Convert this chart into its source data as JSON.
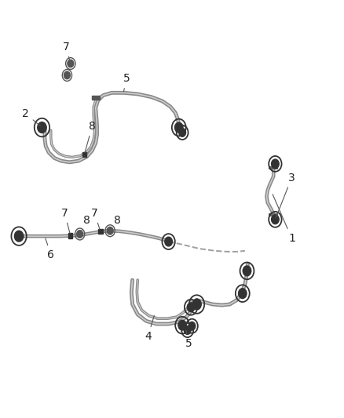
{
  "background_color": "#ffffff",
  "line_color": "#555555",
  "label_color": "#222222",
  "hose_color_outer": "#888888",
  "hose_color_inner": "#cccccc",
  "font_size": 11,
  "lw_main": 2.2
}
